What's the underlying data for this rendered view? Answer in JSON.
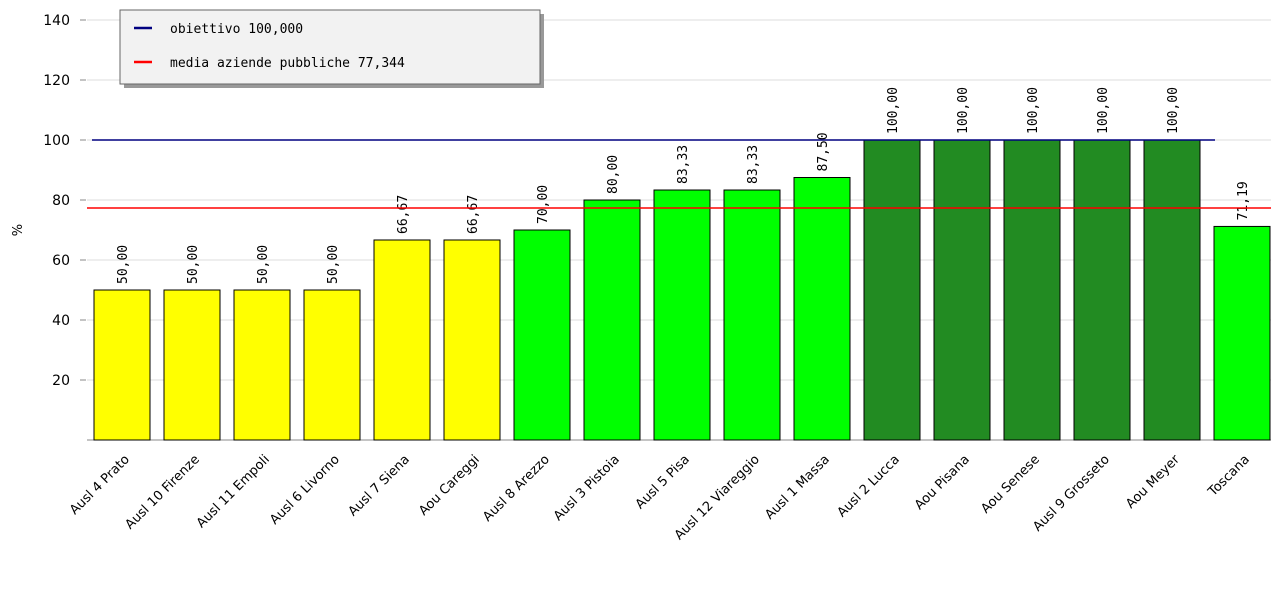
{
  "chart_data": {
    "type": "bar",
    "y_label": "%",
    "categories": [
      "Ausl 4 Prato",
      "Ausl 10 Firenze",
      "Ausl 11 Empoli",
      "Ausl 6 Livorno",
      "Ausl 7 Siena",
      "Aou Careggi",
      "Ausl 8 Arezzo",
      "Ausl 3 Pistoia",
      "Ausl 5 Pisa",
      "Ausl 12 Viareggio",
      "Ausl 1 Massa",
      "Ausl 2 Lucca",
      "Aou Pisana",
      "Aou Senese",
      "Ausl 9 Grosseto",
      "Aou Meyer",
      "Toscana"
    ],
    "values": [
      50,
      50,
      50,
      50,
      66.67,
      66.67,
      70,
      80,
      83.33,
      83.33,
      87.5,
      100,
      100,
      100,
      100,
      100,
      71.19
    ],
    "value_labels": [
      "50,00",
      "50,00",
      "50,00",
      "50,00",
      "66,67",
      "66,67",
      "70,00",
      "80,00",
      "83,33",
      "83,33",
      "87,50",
      "100,00",
      "100,00",
      "100,00",
      "100,00",
      "100,00",
      "71,19"
    ],
    "colors": [
      "#ffff00",
      "#ffff00",
      "#ffff00",
      "#ffff00",
      "#ffff00",
      "#ffff00",
      "#00ff00",
      "#00ff00",
      "#00ff00",
      "#00ff00",
      "#00ff00",
      "#228b22",
      "#228b22",
      "#228b22",
      "#228b22",
      "#228b22",
      "#00ff00"
    ],
    "reference_lines": [
      {
        "name": "obiettivo 100,000",
        "value": 100,
        "color": "#000080"
      },
      {
        "name": "media aziende pubbliche 77,344",
        "value": 77.344,
        "color": "#ff0000"
      }
    ],
    "ylim": [
      0,
      140
    ],
    "yticks": [
      20,
      40,
      60,
      80,
      100,
      120,
      140
    ],
    "grid": true
  }
}
